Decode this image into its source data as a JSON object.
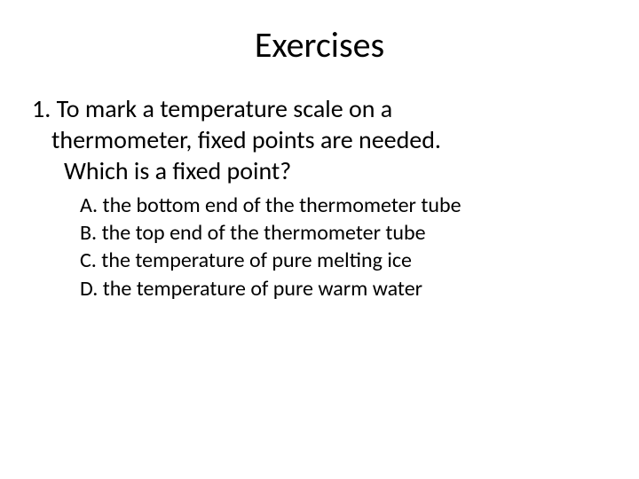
{
  "title": "Exercises",
  "question": {
    "number": "1.",
    "line1": "To mark a temperature scale on a",
    "line2": "thermometer, fixed points are needed.",
    "line3": "Which is a fixed point?"
  },
  "options": [
    {
      "label": "A.",
      "text": "the bottom end of the thermometer tube"
    },
    {
      "label": "B.",
      "text": "the top end of the thermometer tube"
    },
    {
      "label": "C.",
      "text": "the temperature of pure melting ice"
    },
    {
      "label": "D.",
      "text": "the temperature of pure warm water"
    }
  ],
  "colors": {
    "background": "#ffffff",
    "text": "#000000"
  },
  "fonts": {
    "title_size": 40,
    "question_size": 28,
    "option_size": 24
  }
}
